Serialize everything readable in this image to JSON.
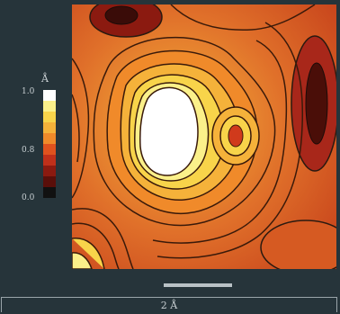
{
  "colorbar": {
    "unit": "Å",
    "ticks": [
      "1.0",
      "0.8",
      "0.0"
    ],
    "values": [
      1.0,
      0.8,
      0.0
    ],
    "min": 0.0,
    "max": 1.0,
    "colors_low_to_high": [
      "#111111",
      "#5a0f0a",
      "#8b1a10",
      "#c0301a",
      "#e0521e",
      "#f08a2a",
      "#f5b23a",
      "#f8d44a",
      "#fbf08a",
      "#ffffff"
    ]
  },
  "scale_bar": {
    "label": "2 Å"
  }
}
